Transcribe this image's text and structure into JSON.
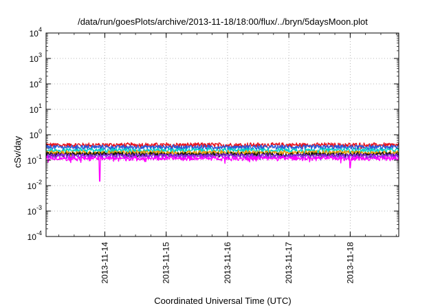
{
  "chart_data": {
    "type": "line",
    "title": "/data/run/goesPlots/archive/2013-11-18/18:00/flux/../bryn/5daysMoon.plot",
    "xlabel": "Coordinated Universal Time (UTC)",
    "ylabel": "cSv/day",
    "yscale": "log",
    "ylim": [
      0.0001,
      10000
    ],
    "xlim": [
      "2013-11-13 01:00",
      "2013-11-18 19:00"
    ],
    "grid": true,
    "y_ticks": [
      {
        "value": 0.0001,
        "base": "10",
        "exp": "-4"
      },
      {
        "value": 0.001,
        "base": "10",
        "exp": "-3"
      },
      {
        "value": 0.01,
        "base": "10",
        "exp": "-2"
      },
      {
        "value": 0.1,
        "base": "10",
        "exp": "-1"
      },
      {
        "value": 1,
        "base": "10",
        "exp": "0"
      },
      {
        "value": 10,
        "base": "10",
        "exp": "1"
      },
      {
        "value": 100,
        "base": "10",
        "exp": "2"
      },
      {
        "value": 1000,
        "base": "10",
        "exp": "3"
      },
      {
        "value": 10000,
        "base": "10",
        "exp": "4"
      }
    ],
    "x_ticks": [
      "2013-11-14",
      "2013-11-15",
      "2013-11-16",
      "2013-11-17",
      "2013-11-18"
    ],
    "series_levels": [
      {
        "color": "#e8141e",
        "level": 0.4
      },
      {
        "color": "#2b59d8",
        "level": 0.33
      },
      {
        "color": "#00d2c8",
        "level": 0.25
      },
      {
        "color": "#e69a00",
        "level": 0.2
      },
      {
        "color": "#141414",
        "level": 0.17
      },
      {
        "color": "#8a2be2",
        "level": 0.15
      },
      {
        "color": "#ff00ff",
        "level": 0.12
      }
    ],
    "notable_dips": [
      {
        "x": "2013-11-13 22:00",
        "value": 0.015
      },
      {
        "x": "2013-11-18 00:00",
        "value": 0.05
      }
    ]
  }
}
